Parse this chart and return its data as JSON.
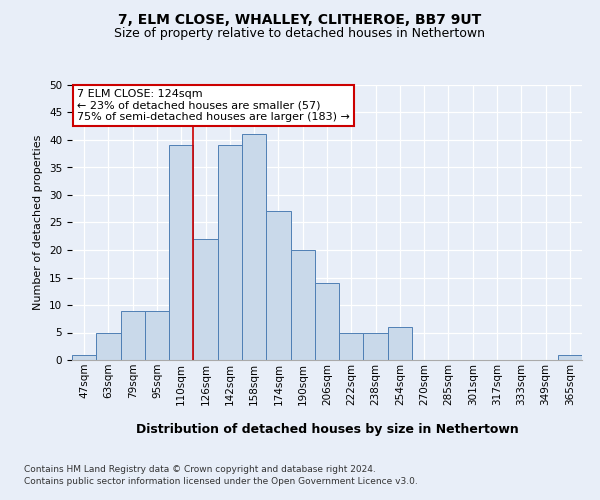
{
  "title1": "7, ELM CLOSE, WHALLEY, CLITHEROE, BB7 9UT",
  "title2": "Size of property relative to detached houses in Nethertown",
  "xlabel": "Distribution of detached houses by size in Nethertown",
  "ylabel": "Number of detached properties",
  "bin_labels": [
    "47sqm",
    "63sqm",
    "79sqm",
    "95sqm",
    "110sqm",
    "126sqm",
    "142sqm",
    "158sqm",
    "174sqm",
    "190sqm",
    "206sqm",
    "222sqm",
    "238sqm",
    "254sqm",
    "270sqm",
    "285sqm",
    "301sqm",
    "317sqm",
    "333sqm",
    "349sqm",
    "365sqm"
  ],
  "bar_heights": [
    1,
    5,
    9,
    9,
    39,
    22,
    39,
    41,
    27,
    20,
    14,
    5,
    5,
    6,
    0,
    0,
    0,
    0,
    0,
    0,
    1
  ],
  "bar_color": "#c9d9ea",
  "bar_edge_color": "#4f7fb5",
  "marker_label": "7 ELM CLOSE: 124sqm",
  "annotation_line1": "← 23% of detached houses are smaller (57)",
  "annotation_line2": "75% of semi-detached houses are larger (183) →",
  "annotation_box_color": "white",
  "annotation_box_edge_color": "#cc0000",
  "vline_color": "#cc0000",
  "vline_x": 5,
  "ylim": [
    0,
    50
  ],
  "yticks": [
    0,
    5,
    10,
    15,
    20,
    25,
    30,
    35,
    40,
    45,
    50
  ],
  "bg_color": "#e8eef8",
  "plot_bg_color": "#e8eef8",
  "footer1": "Contains HM Land Registry data © Crown copyright and database right 2024.",
  "footer2": "Contains public sector information licensed under the Open Government Licence v3.0.",
  "title1_fontsize": 10,
  "title2_fontsize": 9,
  "xlabel_fontsize": 9,
  "ylabel_fontsize": 8,
  "tick_fontsize": 7.5,
  "footer_fontsize": 6.5,
  "annot_fontsize": 8
}
